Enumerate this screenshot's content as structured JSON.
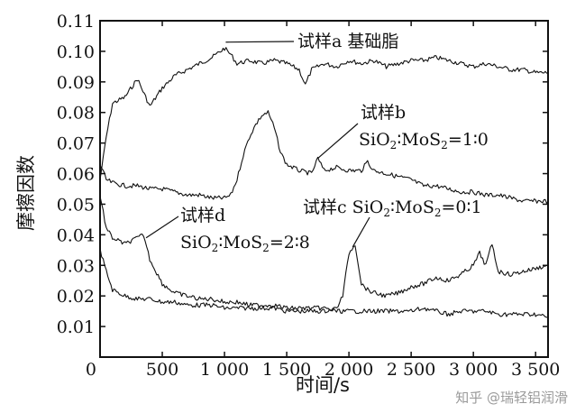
{
  "chart_data": {
    "type": "line",
    "xlabel": "时间/s",
    "ylabel": "摩擦因数",
    "xlim": [
      0,
      3600
    ],
    "ylim": [
      0,
      0.11
    ],
    "x_ticks": [
      "0",
      "500",
      "1 000",
      "1 500",
      "2 000",
      "2 500",
      "3 000",
      "3 500"
    ],
    "x_tick_values": [
      0,
      500,
      1000,
      1500,
      2000,
      2500,
      3000,
      3500
    ],
    "y_ticks": [
      "0.01",
      "0.02",
      "0.03",
      "0.04",
      "0.05",
      "0.06",
      "0.07",
      "0.08",
      "0.09",
      "0.10",
      "0.11"
    ],
    "y_tick_values": [
      0.01,
      0.02,
      0.03,
      0.04,
      0.05,
      0.06,
      0.07,
      0.08,
      0.09,
      0.1,
      0.11
    ],
    "grid": false,
    "series": [
      {
        "id": "a",
        "x": [
          0,
          50,
          100,
          200,
          300,
          400,
          500,
          600,
          700,
          800,
          900,
          1000,
          1050,
          1100,
          1200,
          1300,
          1400,
          1500,
          1600,
          1650,
          1700,
          1800,
          1900,
          2000,
          2100,
          2200,
          2300,
          2400,
          2500,
          2600,
          2700,
          2800,
          2900,
          3000,
          3100,
          3200,
          3300,
          3400,
          3500,
          3600
        ],
        "y": [
          0.058,
          0.072,
          0.083,
          0.085,
          0.091,
          0.082,
          0.088,
          0.092,
          0.094,
          0.096,
          0.098,
          0.101,
          0.099,
          0.096,
          0.097,
          0.096,
          0.097,
          0.096,
          0.094,
          0.089,
          0.094,
          0.096,
          0.095,
          0.097,
          0.096,
          0.097,
          0.095,
          0.096,
          0.097,
          0.097,
          0.098,
          0.097,
          0.096,
          0.095,
          0.096,
          0.095,
          0.094,
          0.094,
          0.093,
          0.093
        ]
      },
      {
        "id": "b",
        "x": [
          0,
          50,
          100,
          200,
          300,
          400,
          500,
          600,
          700,
          800,
          900,
          1000,
          1050,
          1100,
          1150,
          1200,
          1250,
          1300,
          1350,
          1400,
          1450,
          1500,
          1600,
          1700,
          1750,
          1800,
          1900,
          2000,
          2100,
          2150,
          2200,
          2300,
          2400,
          2500,
          2600,
          2700,
          2800,
          2900,
          3000,
          3100,
          3200,
          3300,
          3400,
          3500,
          3600
        ],
        "y": [
          0.063,
          0.058,
          0.057,
          0.056,
          0.056,
          0.055,
          0.055,
          0.054,
          0.053,
          0.053,
          0.052,
          0.052,
          0.053,
          0.058,
          0.066,
          0.072,
          0.076,
          0.079,
          0.08,
          0.075,
          0.067,
          0.063,
          0.061,
          0.06,
          0.065,
          0.061,
          0.062,
          0.061,
          0.061,
          0.064,
          0.061,
          0.06,
          0.059,
          0.058,
          0.056,
          0.056,
          0.055,
          0.054,
          0.054,
          0.053,
          0.053,
          0.052,
          0.051,
          0.051,
          0.051
        ]
      },
      {
        "id": "c",
        "x": [
          0,
          50,
          100,
          200,
          300,
          400,
          500,
          600,
          700,
          800,
          900,
          1000,
          1100,
          1200,
          1300,
          1400,
          1500,
          1600,
          1700,
          1800,
          1900,
          1950,
          2000,
          2050,
          2100,
          2150,
          2200,
          2300,
          2400,
          2500,
          2600,
          2700,
          2800,
          2900,
          3000,
          3050,
          3100,
          3150,
          3200,
          3300,
          3400,
          3500,
          3600
        ],
        "y": [
          0.035,
          0.028,
          0.022,
          0.02,
          0.019,
          0.019,
          0.018,
          0.018,
          0.017,
          0.017,
          0.017,
          0.016,
          0.016,
          0.016,
          0.016,
          0.016,
          0.015,
          0.015,
          0.015,
          0.015,
          0.016,
          0.02,
          0.034,
          0.037,
          0.024,
          0.022,
          0.021,
          0.02,
          0.021,
          0.023,
          0.024,
          0.026,
          0.025,
          0.027,
          0.03,
          0.034,
          0.03,
          0.037,
          0.028,
          0.027,
          0.028,
          0.029,
          0.03
        ]
      },
      {
        "id": "d",
        "x": [
          0,
          50,
          100,
          200,
          300,
          350,
          400,
          500,
          600,
          700,
          800,
          900,
          1000,
          1100,
          1200,
          1300,
          1400,
          1500,
          1600,
          1700,
          1800,
          1900,
          2000,
          2100,
          2200,
          2300,
          2400,
          2500,
          2600,
          2700,
          2800,
          2900,
          3000,
          3100,
          3200,
          3300,
          3400,
          3500,
          3600
        ],
        "y": [
          0.053,
          0.042,
          0.039,
          0.037,
          0.039,
          0.04,
          0.032,
          0.024,
          0.021,
          0.02,
          0.019,
          0.019,
          0.018,
          0.018,
          0.017,
          0.017,
          0.017,
          0.016,
          0.016,
          0.016,
          0.016,
          0.015,
          0.015,
          0.015,
          0.015,
          0.015,
          0.015,
          0.015,
          0.016,
          0.015,
          0.014,
          0.015,
          0.015,
          0.015,
          0.014,
          0.014,
          0.014,
          0.014,
          0.013
        ]
      }
    ],
    "annotations": [
      {
        "id": "a",
        "line1": "试样a 基础脂",
        "line2": "",
        "arrow_to": [
          1010,
          0.103
        ]
      },
      {
        "id": "b",
        "line1": "试样b",
        "line2_parts": [
          "SiO",
          "2",
          "∶MoS",
          "2",
          "=1∶0"
        ],
        "arrow_to": [
          1750,
          0.065
        ]
      },
      {
        "id": "c",
        "line1_parts": [
          "试样c SiO",
          "2",
          "∶MoS",
          "2",
          "=0∶1"
        ],
        "arrow_to": [
          2030,
          0.036
        ]
      },
      {
        "id": "d",
        "line1": "试样d",
        "line2_parts": [
          "SiO",
          "2",
          "∶MoS",
          "2",
          "=2∶8"
        ],
        "arrow_to": [
          370,
          0.039
        ]
      }
    ]
  },
  "watermark": "知乎 @瑞轻铝润滑",
  "colors": {
    "line": "#111111",
    "background": "#ffffff",
    "watermark": "#9a9a9a"
  }
}
